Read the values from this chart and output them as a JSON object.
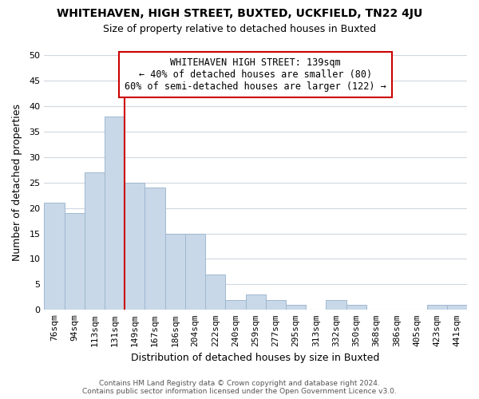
{
  "title": "WHITEHAVEN, HIGH STREET, BUXTED, UCKFIELD, TN22 4JU",
  "subtitle": "Size of property relative to detached houses in Buxted",
  "xlabel": "Distribution of detached houses by size in Buxted",
  "ylabel": "Number of detached properties",
  "footer_line1": "Contains HM Land Registry data © Crown copyright and database right 2024.",
  "footer_line2": "Contains public sector information licensed under the Open Government Licence v3.0.",
  "bar_labels": [
    "76sqm",
    "94sqm",
    "113sqm",
    "131sqm",
    "149sqm",
    "167sqm",
    "186sqm",
    "204sqm",
    "222sqm",
    "240sqm",
    "259sqm",
    "277sqm",
    "295sqm",
    "313sqm",
    "332sqm",
    "350sqm",
    "368sqm",
    "386sqm",
    "405sqm",
    "423sqm",
    "441sqm"
  ],
  "bar_values": [
    21,
    19,
    27,
    38,
    25,
    24,
    15,
    15,
    7,
    2,
    3,
    2,
    1,
    0,
    2,
    1,
    0,
    0,
    0,
    1,
    1
  ],
  "bar_color": "#c8d8e8",
  "bar_edgecolor": "#a0b8d0",
  "property_line_x": 3.5,
  "property_line_color": "#cc0000",
  "annotation_title": "WHITEHAVEN HIGH STREET: 139sqm",
  "annotation_line1": "← 40% of detached houses are smaller (80)",
  "annotation_line2": "60% of semi-detached houses are larger (122) →",
  "annotation_box_edgecolor": "#cc0000",
  "ylim": [
    0,
    50
  ],
  "yticks": [
    0,
    5,
    10,
    15,
    20,
    25,
    30,
    35,
    40,
    45,
    50
  ],
  "background_color": "#ffffff",
  "grid_color": "#d0d8e0",
  "title_fontsize": 10,
  "subtitle_fontsize": 9,
  "annotation_fontsize": 8.5,
  "xlabel_fontsize": 9,
  "ylabel_fontsize": 9,
  "footer_fontsize": 6.5,
  "tick_fontsize": 8
}
